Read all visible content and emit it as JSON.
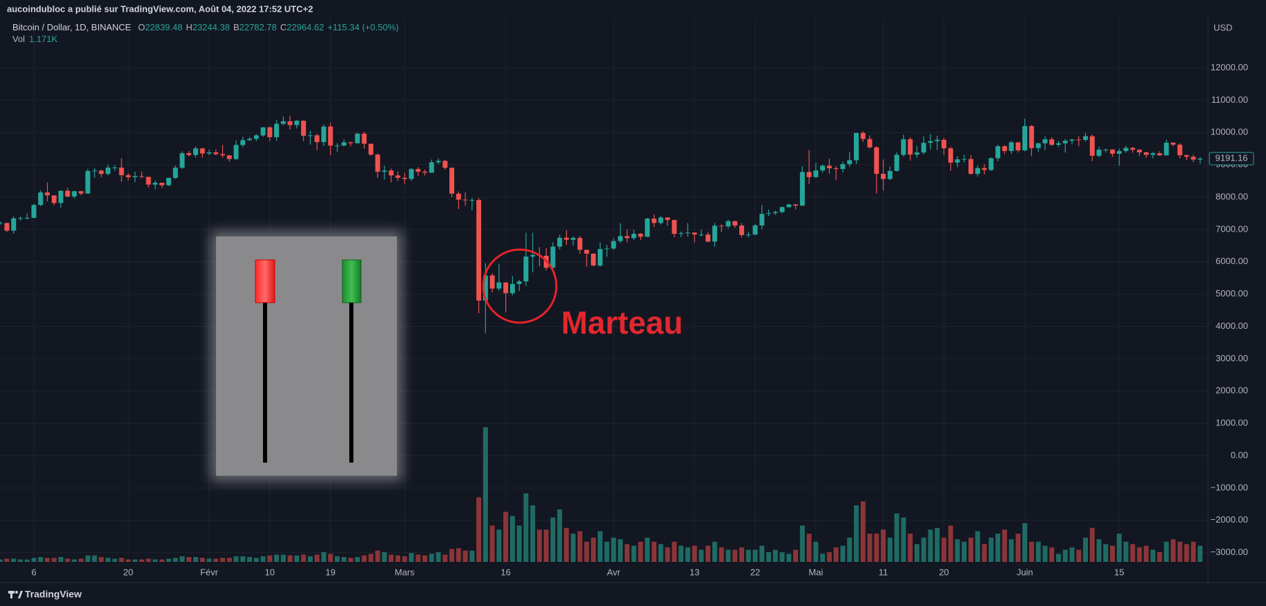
{
  "header": {
    "publisher": "aucoindubloc a publié sur TradingView.com, Août 04, 2022 17:52 UTC+2"
  },
  "footer": {
    "brand": "TradingView"
  },
  "chart_data": {
    "type": "candlestick",
    "symbol": "Bitcoin / Dollar, 1D, BINANCE",
    "ohlc_legend": [
      {
        "label": "O",
        "value": 22839.48
      },
      {
        "label": "H",
        "value": 23244.38
      },
      {
        "label": "B",
        "value": 22782.78
      },
      {
        "label": "C",
        "value": 22964.62
      }
    ],
    "change": "+115.34 (+0.50%)",
    "volume_legend": {
      "label": "Vol",
      "value": "1.171K"
    },
    "currency": "USD",
    "annotation": "Marteau",
    "up_color": "#26a69a",
    "down_color": "#ef5350",
    "volume_up_color": "#1f6b64",
    "volume_down_color": "#8b3539",
    "grid": true,
    "xlim": [
      0,
      179
    ],
    "ylim": [
      -3370,
      13545
    ],
    "volume_ylim": [
      0,
      200
    ],
    "xticks": [
      {
        "value": 5,
        "label": "6"
      },
      {
        "value": 19,
        "label": "20"
      },
      {
        "value": 31,
        "label": "Févr"
      },
      {
        "value": 40,
        "label": "10"
      },
      {
        "value": 49,
        "label": "19"
      },
      {
        "value": 60,
        "label": "Mars"
      },
      {
        "value": 75,
        "label": "16"
      },
      {
        "value": 91,
        "label": "Avr"
      },
      {
        "value": 103,
        "label": "13"
      },
      {
        "value": 112,
        "label": "22"
      },
      {
        "value": 121,
        "label": "Mai"
      },
      {
        "value": 131,
        "label": "11"
      },
      {
        "value": 140,
        "label": "20"
      },
      {
        "value": 152,
        "label": "Juin"
      },
      {
        "value": 166,
        "label": "15"
      }
    ],
    "yticks": [
      {
        "value": -3000,
        "label": "−3000.00"
      },
      {
        "value": -2000,
        "label": "−2000.00"
      },
      {
        "value": -1000,
        "label": "−1000.00"
      },
      {
        "value": 0,
        "label": "0.00"
      },
      {
        "value": 1000,
        "label": "1000.00"
      },
      {
        "value": 2000,
        "label": "2000.00"
      },
      {
        "value": 3000,
        "label": "3000.00"
      },
      {
        "value": 4000,
        "label": "4000.00"
      },
      {
        "value": 5000,
        "label": "5000.00"
      },
      {
        "value": 6000,
        "label": "6000.00"
      },
      {
        "value": 7000,
        "label": "7000.00"
      },
      {
        "value": 8000,
        "label": "8000.00"
      },
      {
        "value": 9000,
        "label": "9000.00"
      },
      {
        "value": 10000,
        "label": "10000.00"
      },
      {
        "value": 11000,
        "label": "11000.00"
      },
      {
        "value": 12000,
        "label": "12000.00"
      }
    ],
    "open": [
      7195,
      7200,
      6965,
      7344,
      7354,
      7358,
      7758,
      8145,
      8055,
      7818,
      8198,
      8020,
      8184,
      8111,
      8810,
      8821,
      8720,
      8913,
      8916,
      8680,
      8617,
      8647,
      8629,
      8389,
      8445,
      8368,
      8597,
      8910,
      9359,
      9304,
      9508,
      9351,
      9385,
      9331,
      9293,
      9180,
      9614,
      9764,
      9804,
      9911,
      10160,
      9855,
      10269,
      10348,
      10229,
      10364,
      9899,
      9911,
      9703,
      10184,
      9593,
      9596,
      9696,
      9669,
      9965,
      9652,
      9316,
      8785,
      8825,
      8672,
      8599,
      8563,
      8869,
      8787,
      8756,
      9078,
      9122,
      8909,
      8108,
      7923,
      7909,
      7911,
      4800,
      5578,
      5172,
      5361,
      5028,
      5312,
      5393,
      6162,
      6208,
      6186,
      5816,
      6469,
      6744,
      6682,
      6738,
      6370,
      6252,
      5881,
      6394,
      6410,
      6642,
      6795,
      6733,
      6868,
      6775,
      7337,
      7201,
      7370,
      7294,
      6865,
      6888,
      6905,
      6843,
      6843,
      6624,
      7116,
      7096,
      7257,
      7122,
      6828,
      6842,
      7125,
      7483,
      7505,
      7538,
      7693,
      7774,
      7738,
      8778,
      8620,
      8826,
      8972,
      8894,
      8871,
      9021,
      9143,
      9986,
      9800,
      9539,
      8722,
      8561,
      8810,
      9309,
      9791,
      9316,
      9381,
      9680,
      9733,
      9775,
      9511,
      9068,
      9170,
      9179,
      8720,
      8900,
      8841,
      9204,
      9575,
      9427,
      9697,
      9448,
      10200,
      9518,
      9666,
      9789,
      9621,
      9666,
      9746,
      9782,
      9772,
      9885,
      9280,
      9465,
      9473,
      9342,
      9426,
      9525,
      9465,
      9386,
      9310,
      9358,
      9294,
      9685,
      9624,
      9296,
      9249,
      9162
    ],
    "high": [
      7255,
      7212,
      7405,
      7404,
      7495,
      7795,
      8207,
      8455,
      8055,
      8199,
      8286,
      8197,
      8196,
      8880,
      8900,
      8846,
      9010,
      8988,
      9198,
      8740,
      8790,
      8795,
      8629,
      8515,
      8449,
      8605,
      8980,
      9420,
      9428,
      9570,
      9532,
      9467,
      9473,
      9615,
      9310,
      9755,
      9866,
      9860,
      9950,
      10165,
      10190,
      10385,
      10495,
      10520,
      10385,
      10375,
      10050,
      9965,
      10250,
      10298,
      9670,
      9780,
      9715,
      9990,
      10025,
      9660,
      9348,
      8970,
      8885,
      8796,
      8749,
      8900,
      8925,
      8849,
      9164,
      9195,
      9159,
      8909,
      8175,
      8150,
      7972,
      7966,
      5955,
      5640,
      5940,
      5365,
      5553,
      5440,
      6900,
      6900,
      6456,
      6420,
      6600,
      6844,
      6980,
      6790,
      6800,
      6372,
      6260,
      6600,
      6525,
      6740,
      7198,
      7000,
      6990,
      6890,
      7355,
      7459,
      7420,
      7380,
      7300,
      6937,
      7200,
      6905,
      6990,
      6925,
      7200,
      7156,
      7300,
      7270,
      7200,
      6922,
      7180,
      7760,
      7615,
      7590,
      7710,
      7800,
      7790,
      8950,
      9460,
      9060,
      9010,
      9190,
      8955,
      9100,
      9395,
      9990,
      10040,
      9910,
      9578,
      9168,
      8945,
      9390,
      9930,
      9845,
      9585,
      9880,
      9950,
      9900,
      9835,
      9560,
      9270,
      9310,
      9300,
      8978,
      9017,
      9225,
      9625,
      9605,
      9740,
      9700,
      10428,
      10228,
      9690,
      9881,
      9854,
      9740,
      9800,
      9800,
      9880,
      9990,
      9938,
      9557,
      9497,
      9485,
      9498,
      9589,
      9550,
      9489,
      9400,
      9398,
      9422,
      9780,
      9700,
      9670,
      9321,
      9315,
      9240
    ],
    "low": [
      7150,
      6925,
      6871,
      7272,
      7318,
      7346,
      7723,
      7870,
      7750,
      7672,
      8000,
      7960,
      8055,
      8106,
      8603,
      8612,
      8672,
      8806,
      8473,
      8520,
      8460,
      8581,
      8296,
      8240,
      8281,
      8344,
      8560,
      8870,
      9260,
      9223,
      9230,
      9300,
      9295,
      9221,
      9100,
      9150,
      9545,
      9733,
      9738,
      9870,
      9733,
      9735,
      10225,
      10092,
      10125,
      9733,
      9625,
      9456,
      9580,
      9300,
      9400,
      9575,
      9580,
      9655,
      9500,
      9276,
      8600,
      8540,
      8455,
      8500,
      8410,
      8505,
      8660,
      8670,
      8753,
      9013,
      8850,
      8000,
      7630,
      7735,
      7590,
      4410,
      3782,
      5055,
      5100,
      4442,
      4965,
      5093,
      5260,
      5670,
      5860,
      5734,
      5690,
      6380,
      6520,
      6500,
      6252,
      5850,
      5865,
      5855,
      6150,
      6365,
      6580,
      6600,
      6670,
      6670,
      6768,
      7070,
      7150,
      7108,
      6761,
      6760,
      6780,
      6600,
      6788,
      6612,
      6460,
      6920,
      7033,
      7055,
      6750,
      6760,
      6815,
      7010,
      7412,
      7450,
      7502,
      7665,
      7620,
      7728,
      8400,
      8600,
      8760,
      8720,
      8530,
      8760,
      8940,
      9023,
      9710,
      9505,
      8115,
      8200,
      8525,
      8793,
      9257,
      9130,
      9220,
      9322,
      9475,
      9460,
      9300,
      8815,
      8930,
      9070,
      8700,
      8633,
      8700,
      8811,
      9110,
      9330,
      9335,
      9380,
      9418,
      9266,
      9400,
      9450,
      9580,
      9550,
      9380,
      9633,
      9570,
      9720,
      9113,
      9230,
      9380,
      9245,
      8975,
      9375,
      9372,
      9280,
      9215,
      9200,
      9281,
      9282,
      9570,
      9200,
      9150,
      9080,
      9040
    ],
    "close": [
      7200,
      6965,
      7344,
      7354,
      7358,
      7758,
      8145,
      8055,
      7818,
      8198,
      8020,
      8184,
      8111,
      8810,
      8821,
      8720,
      8913,
      8916,
      8680,
      8617,
      8647,
      8629,
      8389,
      8445,
      8368,
      8597,
      8910,
      9359,
      9304,
      9508,
      9351,
      9385,
      9331,
      9293,
      9180,
      9614,
      9764,
      9804,
      9911,
      10160,
      9855,
      10269,
      10348,
      10229,
      10364,
      9899,
      9911,
      9703,
      10184,
      9593,
      9596,
      9696,
      9669,
      9965,
      9652,
      9316,
      8785,
      8825,
      8672,
      8599,
      8563,
      8869,
      8787,
      8756,
      9078,
      9122,
      8909,
      8108,
      7923,
      7909,
      7911,
      4800,
      5578,
      5172,
      5361,
      5028,
      5312,
      5393,
      6162,
      6208,
      6186,
      5816,
      6469,
      6744,
      6682,
      6738,
      6370,
      6252,
      5881,
      6394,
      6410,
      6642,
      6795,
      6733,
      6868,
      6775,
      7337,
      7201,
      7370,
      7294,
      6865,
      6888,
      6905,
      6843,
      6843,
      6624,
      7116,
      7096,
      7257,
      7122,
      6828,
      6842,
      7125,
      7483,
      7505,
      7538,
      7693,
      7774,
      7738,
      8778,
      8620,
      8826,
      8972,
      8894,
      8871,
      9021,
      9143,
      9986,
      9800,
      9539,
      8722,
      8561,
      8810,
      9309,
      9791,
      9316,
      9381,
      9680,
      9733,
      9775,
      9511,
      9068,
      9170,
      9179,
      8720,
      8900,
      8841,
      9204,
      9575,
      9427,
      9697,
      9448,
      10200,
      9518,
      9666,
      9789,
      9621,
      9666,
      9746,
      9782,
      9772,
      9885,
      9280,
      9465,
      9473,
      9342,
      9426,
      9525,
      9465,
      9386,
      9310,
      9358,
      9294,
      9685,
      9624,
      9296,
      9249,
      9162,
      9191.16
    ],
    "volume": [
      3,
      4,
      4,
      3,
      3,
      5,
      6,
      5,
      5,
      6,
      4,
      3,
      4,
      8,
      8,
      6,
      5,
      4,
      5,
      3,
      3,
      3,
      4,
      3,
      3,
      4,
      5,
      7,
      6,
      6,
      5,
      4,
      4,
      5,
      5,
      7,
      7,
      6,
      5,
      7,
      8,
      9,
      9,
      8,
      8,
      9,
      7,
      9,
      12,
      10,
      7,
      6,
      5,
      6,
      8,
      10,
      14,
      12,
      9,
      8,
      7,
      11,
      9,
      8,
      10,
      12,
      9,
      16,
      17,
      14,
      14,
      80,
      167,
      45,
      40,
      62,
      57,
      45,
      85,
      70,
      40,
      40,
      55,
      65,
      42,
      35,
      38,
      25,
      30,
      38,
      25,
      30,
      28,
      22,
      20,
      25,
      30,
      25,
      22,
      18,
      25,
      20,
      18,
      20,
      15,
      20,
      25,
      18,
      15,
      15,
      18,
      15,
      15,
      20,
      12,
      15,
      12,
      10,
      15,
      45,
      35,
      25,
      10,
      12,
      18,
      20,
      30,
      70,
      75,
      35,
      35,
      40,
      30,
      60,
      55,
      35,
      22,
      30,
      40,
      42,
      30,
      45,
      28,
      25,
      30,
      38,
      22,
      30,
      35,
      40,
      28,
      35,
      48,
      25,
      25,
      20,
      18,
      10,
      15,
      18,
      15,
      30,
      42,
      28,
      22,
      20,
      35,
      25,
      22,
      18,
      20,
      15,
      12,
      25,
      28,
      25,
      22,
      25,
      20
    ]
  }
}
